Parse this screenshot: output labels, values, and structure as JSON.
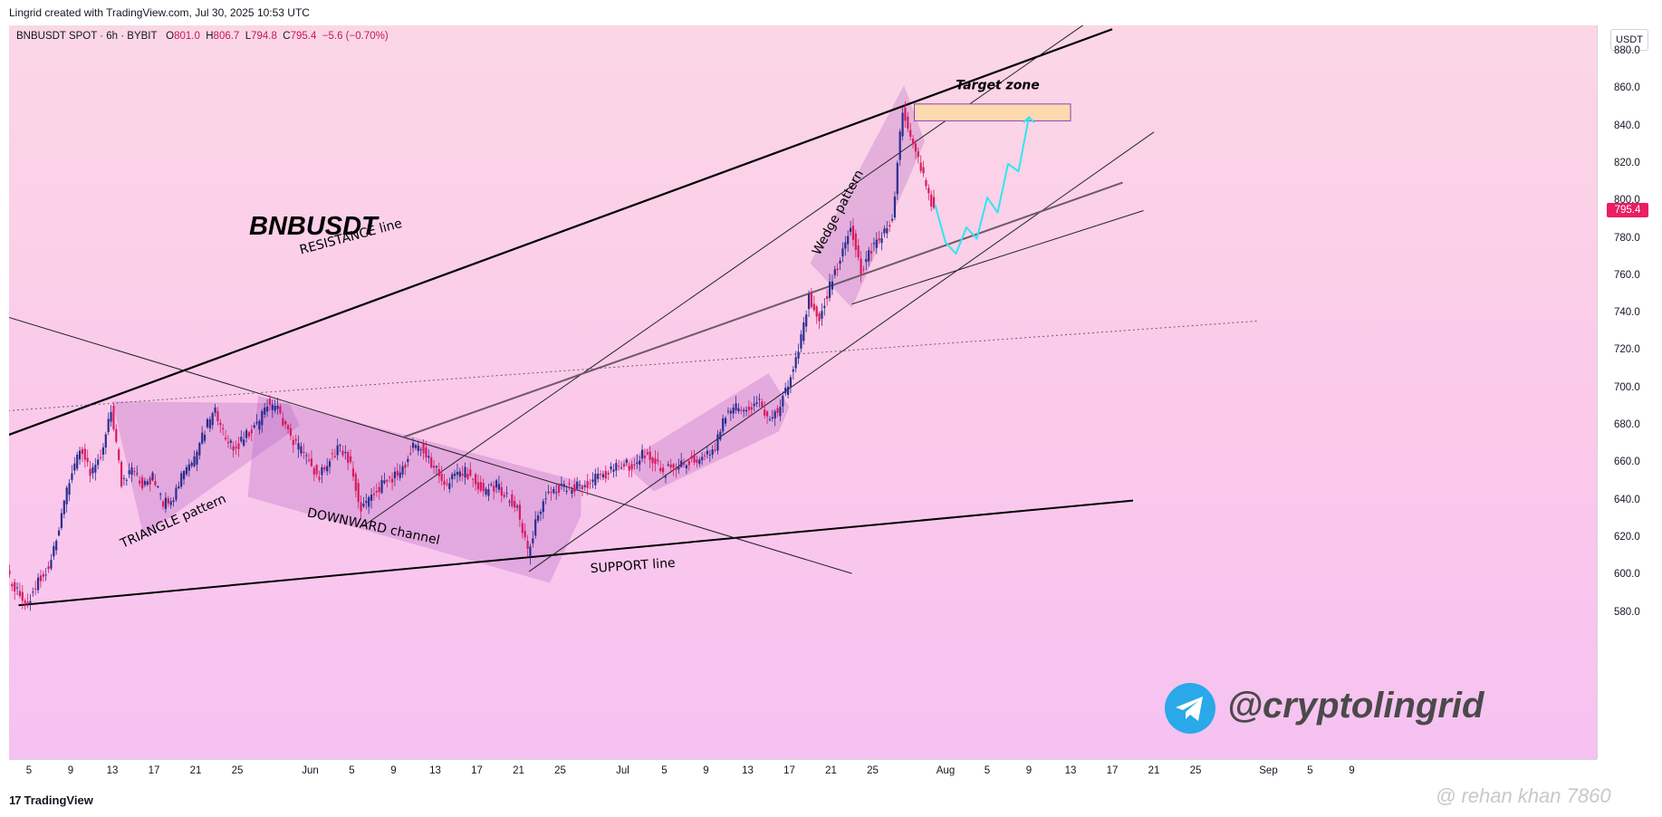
{
  "header": {
    "title": "Lingrid created with TradingView.com, Jul 30, 2025 10:53 UTC"
  },
  "ohlc": {
    "symbol": "BNBUSDT SPOT · 6h · BYBIT",
    "open_label": "O",
    "open": "801.0",
    "high_label": "H",
    "high": "806.7",
    "low_label": "L",
    "low": "794.8",
    "close_label": "C",
    "close": "795.4",
    "change": "−5.6 (−0.70%)"
  },
  "watermark_symbol": "BNBUSDT",
  "author_handle": "@cryptolingrid",
  "credit_watermark": "@ rehan khan 7860",
  "footer": {
    "brand_mark": "17",
    "brand": "TradingView"
  },
  "colors": {
    "bull_candle": "#2a2e8f",
    "bear_candle": "#d81b60",
    "projection": "#2ee6f0",
    "target_zone_fill": "#fdd9b0",
    "target_zone_border": "#8e44ad",
    "last_price": "#e91e63"
  },
  "chart_data": {
    "type": "candlestick",
    "symbol": "BNBUSDT",
    "exchange": "BYBIT",
    "interval": "6h",
    "currency": "USDT",
    "last_price": "795.4",
    "ylim": [
      572,
      900
    ],
    "y_ticks": [
      "880.0",
      "860.0",
      "840.0",
      "820.0",
      "800.0",
      "780.0",
      "760.0",
      "740.0",
      "720.0",
      "700.0",
      "680.0",
      "660.0",
      "640.0",
      "620.0",
      "600.0",
      "580.0"
    ],
    "x_ticks": [
      {
        "label": "5",
        "date": "2025-05-05"
      },
      {
        "label": "9",
        "date": "2025-05-09"
      },
      {
        "label": "13",
        "date": "2025-05-13"
      },
      {
        "label": "17",
        "date": "2025-05-17"
      },
      {
        "label": "21",
        "date": "2025-05-21"
      },
      {
        "label": "25",
        "date": "2025-05-25"
      },
      {
        "label": "Jun",
        "date": "2025-06-01"
      },
      {
        "label": "5",
        "date": "2025-06-05"
      },
      {
        "label": "9",
        "date": "2025-06-09"
      },
      {
        "label": "13",
        "date": "2025-06-13"
      },
      {
        "label": "17",
        "date": "2025-06-17"
      },
      {
        "label": "21",
        "date": "2025-06-21"
      },
      {
        "label": "25",
        "date": "2025-06-25"
      },
      {
        "label": "Jul",
        "date": "2025-07-01"
      },
      {
        "label": "5",
        "date": "2025-07-05"
      },
      {
        "label": "9",
        "date": "2025-07-09"
      },
      {
        "label": "13",
        "date": "2025-07-13"
      },
      {
        "label": "17",
        "date": "2025-07-17"
      },
      {
        "label": "21",
        "date": "2025-07-21"
      },
      {
        "label": "25",
        "date": "2025-07-25"
      },
      {
        "label": "Aug",
        "date": "2025-08-01"
      },
      {
        "label": "5",
        "date": "2025-08-05"
      },
      {
        "label": "9",
        "date": "2025-08-09"
      },
      {
        "label": "13",
        "date": "2025-08-13"
      },
      {
        "label": "17",
        "date": "2025-08-17"
      },
      {
        "label": "21",
        "date": "2025-08-21"
      },
      {
        "label": "25",
        "date": "2025-08-25"
      },
      {
        "label": "Sep",
        "date": "2025-09-01"
      },
      {
        "label": "5",
        "date": "2025-09-05"
      },
      {
        "label": "9",
        "date": "2025-09-09"
      }
    ],
    "price_path": [
      [
        "2025-05-03",
        600
      ],
      [
        "2025-05-04",
        592
      ],
      [
        "2025-05-05",
        585
      ],
      [
        "2025-05-06",
        597
      ],
      [
        "2025-05-07",
        604
      ],
      [
        "2025-05-08",
        625
      ],
      [
        "2025-05-09",
        652
      ],
      [
        "2025-05-10",
        668
      ],
      [
        "2025-05-11",
        655
      ],
      [
        "2025-05-12",
        662
      ],
      [
        "2025-05-13",
        688
      ],
      [
        "2025-05-14",
        650
      ],
      [
        "2025-05-15",
        658
      ],
      [
        "2025-05-16",
        648
      ],
      [
        "2025-05-17",
        652
      ],
      [
        "2025-05-18",
        638
      ],
      [
        "2025-05-19",
        643
      ],
      [
        "2025-05-20",
        655
      ],
      [
        "2025-05-21",
        662
      ],
      [
        "2025-05-22",
        678
      ],
      [
        "2025-05-23",
        688
      ],
      [
        "2025-05-24",
        672
      ],
      [
        "2025-05-25",
        668
      ],
      [
        "2025-05-26",
        675
      ],
      [
        "2025-05-27",
        680
      ],
      [
        "2025-05-28",
        692
      ],
      [
        "2025-05-29",
        688
      ],
      [
        "2025-05-30",
        676
      ],
      [
        "2025-05-31",
        668
      ],
      [
        "2025-06-01",
        660
      ],
      [
        "2025-06-02",
        652
      ],
      [
        "2025-06-03",
        664
      ],
      [
        "2025-06-04",
        668
      ],
      [
        "2025-06-05",
        660
      ],
      [
        "2025-06-06",
        635
      ],
      [
        "2025-06-07",
        642
      ],
      [
        "2025-06-08",
        648
      ],
      [
        "2025-06-09",
        652
      ],
      [
        "2025-06-10",
        658
      ],
      [
        "2025-06-11",
        668
      ],
      [
        "2025-06-12",
        668
      ],
      [
        "2025-06-13",
        658
      ],
      [
        "2025-06-14",
        648
      ],
      [
        "2025-06-15",
        652
      ],
      [
        "2025-06-16",
        655
      ],
      [
        "2025-06-17",
        650
      ],
      [
        "2025-06-18",
        645
      ],
      [
        "2025-06-19",
        648
      ],
      [
        "2025-06-20",
        642
      ],
      [
        "2025-06-21",
        636
      ],
      [
        "2025-06-22",
        612
      ],
      [
        "2025-06-23",
        632
      ],
      [
        "2025-06-24",
        645
      ],
      [
        "2025-06-25",
        647
      ],
      [
        "2025-06-26",
        646
      ],
      [
        "2025-06-27",
        648
      ],
      [
        "2025-06-28",
        650
      ],
      [
        "2025-06-29",
        653
      ],
      [
        "2025-06-30",
        656
      ],
      [
        "2025-07-01",
        660
      ],
      [
        "2025-07-02",
        658
      ],
      [
        "2025-07-03",
        665
      ],
      [
        "2025-07-04",
        662
      ],
      [
        "2025-07-05",
        655
      ],
      [
        "2025-07-06",
        658
      ],
      [
        "2025-07-07",
        660
      ],
      [
        "2025-07-08",
        662
      ],
      [
        "2025-07-09",
        664
      ],
      [
        "2025-07-10",
        668
      ],
      [
        "2025-07-11",
        686
      ],
      [
        "2025-07-12",
        690
      ],
      [
        "2025-07-13",
        688
      ],
      [
        "2025-07-14",
        695
      ],
      [
        "2025-07-15",
        682
      ],
      [
        "2025-07-16",
        688
      ],
      [
        "2025-07-17",
        702
      ],
      [
        "2025-07-18",
        720
      ],
      [
        "2025-07-19",
        748
      ],
      [
        "2025-07-20",
        738
      ],
      [
        "2025-07-21",
        755
      ],
      [
        "2025-07-22",
        768
      ],
      [
        "2025-07-23",
        788
      ],
      [
        "2025-07-24",
        762
      ],
      [
        "2025-07-25",
        775
      ],
      [
        "2025-07-26",
        780
      ],
      [
        "2025-07-27",
        790
      ],
      [
        "2025-07-28",
        850
      ],
      [
        "2025-07-29",
        830
      ],
      [
        "2025-07-30",
        812
      ],
      [
        "2025-07-31",
        796
      ]
    ],
    "projection_path": [
      [
        "2025-07-31",
        798
      ],
      [
        "2025-08-01",
        778
      ],
      [
        "2025-08-02",
        772
      ],
      [
        "2025-08-03",
        786
      ],
      [
        "2025-08-04",
        780
      ],
      [
        "2025-08-05",
        802
      ],
      [
        "2025-08-06",
        794
      ],
      [
        "2025-08-07",
        820
      ],
      [
        "2025-08-08",
        816
      ],
      [
        "2025-08-09",
        845
      ]
    ],
    "target_zone": {
      "price_from": 843,
      "price_to": 852,
      "date_from": "2025-07-29",
      "date_to": "2025-08-13"
    },
    "annotations": [
      {
        "text": "RESISTANCE line",
        "date": "2025-06-05",
        "price": 779,
        "angle": -15
      },
      {
        "text": "TRIANGLE pattern",
        "date": "2025-05-19",
        "price": 627,
        "angle": -24
      },
      {
        "text": "DOWNWARD channel",
        "date": "2025-06-07",
        "price": 624,
        "angle": 12
      },
      {
        "text": "SUPPORT line",
        "date": "2025-07-02",
        "price": 603,
        "angle": -4
      },
      {
        "text": "Wedge pattern",
        "date": "2025-07-22",
        "price": 793,
        "angle": -62
      },
      {
        "text": "Target zone",
        "date": "2025-08-06",
        "price": 860,
        "angle": 0
      }
    ],
    "trend_lines": [
      {
        "name": "resistance",
        "p1": [
          "2025-05-03",
          675
        ],
        "p2": [
          "2025-08-17",
          892
        ]
      },
      {
        "name": "support",
        "p1": [
          "2025-05-04",
          584
        ],
        "p2": [
          "2025-08-19",
          640
        ]
      },
      {
        "name": "downtrend",
        "p1": [
          "2025-05-03",
          738
        ],
        "p2": [
          "2025-07-23",
          601
        ]
      },
      {
        "name": "upper-channel",
        "p1": [
          "2025-06-06",
          626
        ],
        "p2": [
          "2025-08-17",
          905
        ]
      },
      {
        "name": "lower-channel-1",
        "p1": [
          "2025-06-22",
          602
        ],
        "p2": [
          "2025-08-21",
          837
        ]
      },
      {
        "name": "lower-channel-2",
        "p1": [
          "2025-07-23",
          745
        ],
        "p2": [
          "2025-08-20",
          795
        ]
      },
      {
        "name": "mid-trend",
        "p1": [
          "2025-06-10",
          674
        ],
        "p2": [
          "2025-08-18",
          810
        ]
      },
      {
        "name": "dotted-trend",
        "p1": [
          "2025-05-03",
          688
        ],
        "p2": [
          "2025-08-31",
          736
        ]
      }
    ],
    "shaded_patterns": [
      {
        "name": "triangle",
        "points": [
          [
            "2025-05-13",
            693
          ],
          [
            "2025-05-30",
            692
          ],
          [
            "2025-05-31",
            680
          ],
          [
            "2025-05-16",
            621
          ]
        ]
      },
      {
        "name": "downward-channel",
        "points": [
          [
            "2025-05-27",
            696
          ],
          [
            "2025-06-27",
            650
          ],
          [
            "2025-06-27",
            632
          ],
          [
            "2025-06-24",
            596
          ],
          [
            "2025-05-26",
            642
          ]
        ]
      },
      {
        "name": "rising-flag",
        "points": [
          [
            "2025-07-01",
            660
          ],
          [
            "2025-07-15",
            708
          ],
          [
            "2025-07-17",
            690
          ],
          [
            "2025-07-16",
            677
          ],
          [
            "2025-07-04",
            645
          ]
        ]
      },
      {
        "name": "wedge",
        "points": [
          [
            "2025-07-19",
            767
          ],
          [
            "2025-07-28",
            862
          ],
          [
            "2025-07-30",
            832
          ],
          [
            "2025-07-23",
            743
          ]
        ]
      }
    ]
  }
}
